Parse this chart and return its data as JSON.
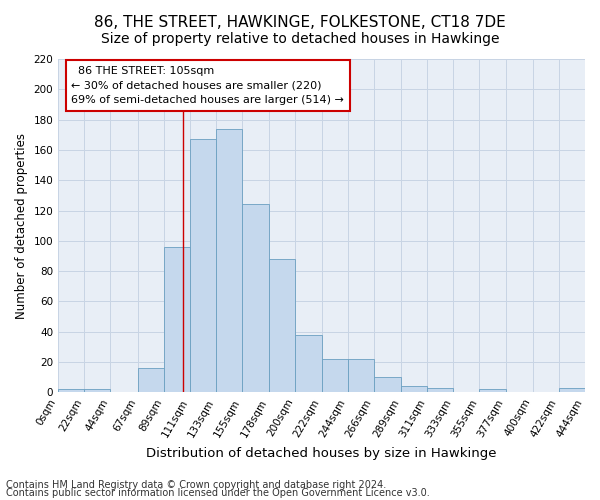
{
  "title": "86, THE STREET, HAWKINGE, FOLKESTONE, CT18 7DE",
  "subtitle": "Size of property relative to detached houses in Hawkinge",
  "xlabel": "Distribution of detached houses by size in Hawkinge",
  "ylabel": "Number of detached properties",
  "footnote1": "Contains HM Land Registry data © Crown copyright and database right 2024.",
  "footnote2": "Contains public sector information licensed under the Open Government Licence v3.0.",
  "annotation_line1": "86 THE STREET: 105sqm",
  "annotation_line2": "← 30% of detached houses are smaller (220)",
  "annotation_line3": "69% of semi-detached houses are larger (514) →",
  "bar_color": "#c5d8ed",
  "bar_edge_color": "#6a9fc0",
  "property_line_x": 105,
  "bins": [
    0,
    22,
    44,
    67,
    89,
    111,
    133,
    155,
    178,
    200,
    222,
    244,
    266,
    289,
    311,
    333,
    355,
    377,
    400,
    422,
    444
  ],
  "counts": [
    2,
    2,
    0,
    16,
    96,
    167,
    174,
    124,
    88,
    38,
    22,
    22,
    10,
    4,
    3,
    0,
    2,
    0,
    0,
    3
  ],
  "ylim": [
    0,
    220
  ],
  "yticks": [
    0,
    20,
    40,
    60,
    80,
    100,
    120,
    140,
    160,
    180,
    200,
    220
  ],
  "grid_color": "#c8d4e4",
  "background_color": "#e8eef6",
  "annotation_box_color": "#ffffff",
  "annotation_box_edge": "#cc0000",
  "red_line_color": "#cc0000",
  "title_fontsize": 11,
  "xlabel_fontsize": 9.5,
  "ylabel_fontsize": 8.5,
  "tick_fontsize": 7.5,
  "annotation_fontsize": 8,
  "footnote_fontsize": 7
}
